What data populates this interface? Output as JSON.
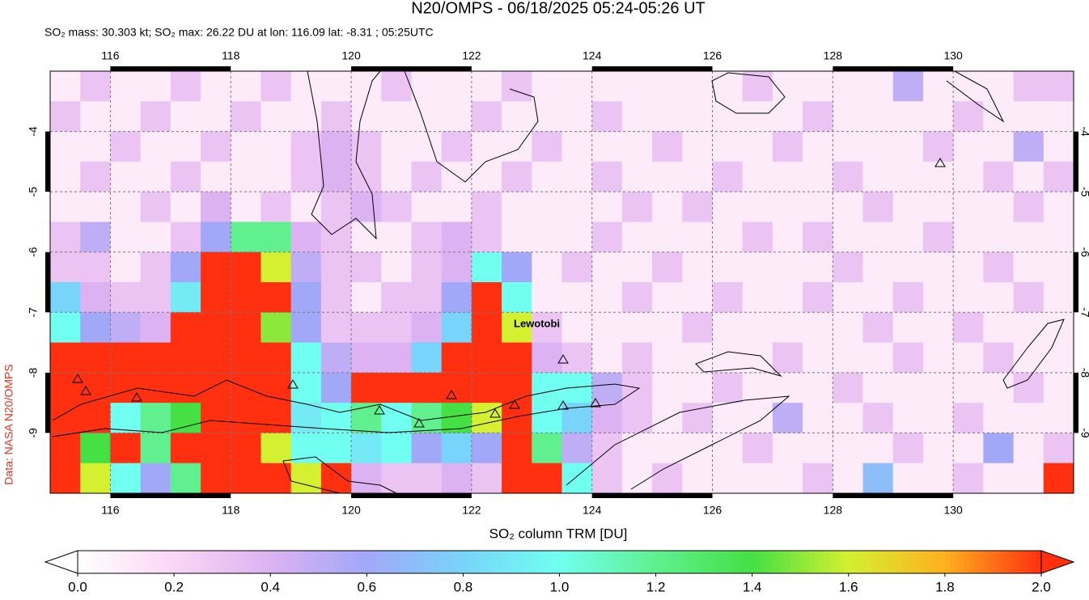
{
  "title": "N20/OMPS - 06/18/2025 05:24-05:26 UT",
  "subtitle": "SO₂ mass: 30.303 kt; SO₂ max: 26.22 DU at lon: 116.09 lat: -8.31 ; 05:25UTC",
  "credit": "Data: NASA N20/OMPS",
  "map": {
    "xlim": [
      115,
      132
    ],
    "ylim": [
      -3,
      -10
    ],
    "xticks": [
      116,
      118,
      120,
      122,
      124,
      126,
      128,
      130
    ],
    "yticks": [
      -4,
      -5,
      -6,
      -7,
      -8,
      -9
    ],
    "annotation": "Lewotobi",
    "grid": [
      [
        0.1,
        0.3,
        0.1,
        0.1,
        0.3,
        0.1,
        0.1,
        0.3,
        0.1,
        0.1,
        0.1,
        0.3,
        0.1,
        0.1,
        0.1,
        0.3,
        0.1,
        0.1,
        0.1,
        0.1,
        0.1,
        0.1,
        0.1,
        0.3,
        0.1,
        0.1,
        0.1,
        0.1,
        0.5,
        0.1,
        0.1,
        0.1,
        0.3,
        0.3
      ],
      [
        0.3,
        0.1,
        0.1,
        0.3,
        0.1,
        0.1,
        0.3,
        0.1,
        0.1,
        0.3,
        0.1,
        0.1,
        0.1,
        0.1,
        0.3,
        0.1,
        0.1,
        0.1,
        0.3,
        0.1,
        0.1,
        0.1,
        0.1,
        0.1,
        0.1,
        0.3,
        0.1,
        0.1,
        0.1,
        0.1,
        0.3,
        0.1,
        0.1,
        0.1
      ],
      [
        0.1,
        0.1,
        0.3,
        0.1,
        0.1,
        0.3,
        0.1,
        0.1,
        0.3,
        0.4,
        0.3,
        0.1,
        0.1,
        0.3,
        0.1,
        0.1,
        0.3,
        0.1,
        0.1,
        0.1,
        0.3,
        0.1,
        0.1,
        0.1,
        0.3,
        0.1,
        0.1,
        0.1,
        0.1,
        0.3,
        0.1,
        0.1,
        0.5,
        0.1
      ],
      [
        0.1,
        0.3,
        0.1,
        0.1,
        0.3,
        0.1,
        0.1,
        0.1,
        0.3,
        0.4,
        0.3,
        0.1,
        0.3,
        0.1,
        0.1,
        0.3,
        0.1,
        0.1,
        0.3,
        0.1,
        0.1,
        0.1,
        0.3,
        0.1,
        0.1,
        0.1,
        0.3,
        0.1,
        0.1,
        0.1,
        0.1,
        0.3,
        0.1,
        0.3
      ],
      [
        0.1,
        0.1,
        0.1,
        0.3,
        0.1,
        0.4,
        0.1,
        0.3,
        0.1,
        0.3,
        0.4,
        0.3,
        0.1,
        0.1,
        0.3,
        0.1,
        0.1,
        0.1,
        0.1,
        0.3,
        0.1,
        0.3,
        0.1,
        0.1,
        0.1,
        0.1,
        0.1,
        0.3,
        0.1,
        0.1,
        0.1,
        0.1,
        0.3,
        0.1
      ],
      [
        0.3,
        0.5,
        0.1,
        0.1,
        0.3,
        0.6,
        1.2,
        1.2,
        0.4,
        0.3,
        0.1,
        0.1,
        0.3,
        0.4,
        0.3,
        0.1,
        0.1,
        0.1,
        0.3,
        0.1,
        0.1,
        0.1,
        0.1,
        0.3,
        0.1,
        0.3,
        0.1,
        0.1,
        0.1,
        0.3,
        0.1,
        0.1,
        0.1,
        0.1
      ],
      [
        0.3,
        0.3,
        0.1,
        0.3,
        0.6,
        2.0,
        2.0,
        1.6,
        0.5,
        0.3,
        0.3,
        0.1,
        0.3,
        0.4,
        1.0,
        0.6,
        0.1,
        0.3,
        0.1,
        0.1,
        0.3,
        0.1,
        0.1,
        0.1,
        0.1,
        0.1,
        0.3,
        0.1,
        0.1,
        0.1,
        0.1,
        0.3,
        0.1,
        0.1
      ],
      [
        0.8,
        0.4,
        0.3,
        0.3,
        0.9,
        2.0,
        2.0,
        2.0,
        0.6,
        0.3,
        0.1,
        0.3,
        0.3,
        0.6,
        2.0,
        1.0,
        0.1,
        0.1,
        0.1,
        0.3,
        0.1,
        0.1,
        0.3,
        0.1,
        0.1,
        0.3,
        0.1,
        0.1,
        0.3,
        0.1,
        0.1,
        0.1,
        0.3,
        0.1
      ],
      [
        1.0,
        0.6,
        0.5,
        0.4,
        2.0,
        2.0,
        2.0,
        1.5,
        0.6,
        0.3,
        0.3,
        0.3,
        0.4,
        0.8,
        2.0,
        1.6,
        0.3,
        0.1,
        0.1,
        0.1,
        0.1,
        0.3,
        0.1,
        0.1,
        0.1,
        0.1,
        0.1,
        0.3,
        0.1,
        0.1,
        0.3,
        0.1,
        0.1,
        0.1
      ],
      [
        2.0,
        2.0,
        2.0,
        2.0,
        2.0,
        2.0,
        2.0,
        2.0,
        1.0,
        0.5,
        0.4,
        0.4,
        0.8,
        2.0,
        2.0,
        2.0,
        0.4,
        0.3,
        0.1,
        0.3,
        0.1,
        0.1,
        0.1,
        0.1,
        0.3,
        0.1,
        0.1,
        0.1,
        0.3,
        0.1,
        0.1,
        0.3,
        0.1,
        0.1
      ],
      [
        2.0,
        2.0,
        2.0,
        2.0,
        2.0,
        2.0,
        2.0,
        2.0,
        1.0,
        0.6,
        2.0,
        2.0,
        2.0,
        2.0,
        2.0,
        2.0,
        1.0,
        1.0,
        0.5,
        0.3,
        0.1,
        0.1,
        0.3,
        0.1,
        0.1,
        0.1,
        0.3,
        0.1,
        0.1,
        0.1,
        0.1,
        0.1,
        0.3,
        0.1
      ],
      [
        2.0,
        2.0,
        1.0,
        1.2,
        1.4,
        2.0,
        2.0,
        2.0,
        0.9,
        1.0,
        1.2,
        1.0,
        1.2,
        1.4,
        1.6,
        2.0,
        1.0,
        0.8,
        0.4,
        0.3,
        0.1,
        0.3,
        0.1,
        0.1,
        0.5,
        0.1,
        0.1,
        0.3,
        0.1,
        0.1,
        0.3,
        0.1,
        0.1,
        0.1
      ],
      [
        2.0,
        1.4,
        2.0,
        1.2,
        2.0,
        2.0,
        2.0,
        1.6,
        1.0,
        1.0,
        0.9,
        1.0,
        0.6,
        0.8,
        0.6,
        2.0,
        1.2,
        0.5,
        0.3,
        0.1,
        0.1,
        0.1,
        0.1,
        0.3,
        0.1,
        0.1,
        0.1,
        0.1,
        0.3,
        0.1,
        0.1,
        0.6,
        0.1,
        0.3
      ],
      [
        2.0,
        1.6,
        1.0,
        0.6,
        1.2,
        2.0,
        2.0,
        2.0,
        1.6,
        2.0,
        0.4,
        0.3,
        0.3,
        0.4,
        0.3,
        2.0,
        2.0,
        1.0,
        0.3,
        0.1,
        0.3,
        0.1,
        0.1,
        0.1,
        0.1,
        0.3,
        0.1,
        0.7,
        0.1,
        0.1,
        0.3,
        0.1,
        0.1,
        2.0
      ]
    ]
  },
  "colorbar": {
    "label": "SO₂ column TRM [DU]",
    "lim": [
      0,
      2
    ],
    "colormap": [
      "#ffffff",
      "#fbd6f5",
      "#dcb2f2",
      "#a2a8f8",
      "#78d4fa",
      "#70fff0",
      "#60f090",
      "#44e044",
      "#d4f030",
      "#ffb020",
      "#ff3010"
    ],
    "ticks": [
      {
        "value": 0,
        "label": "0.0"
      },
      {
        "value": 0.2,
        "label": "0.2"
      },
      {
        "value": 0.4,
        "label": "0.4"
      },
      {
        "value": 0.6,
        "label": "0.6"
      },
      {
        "value": 0.8,
        "label": "0.8"
      },
      {
        "value": 1,
        "label": "1.0"
      },
      {
        "value": 1.2,
        "label": "1.2"
      },
      {
        "value": 1.4,
        "label": "1.4"
      },
      {
        "value": 1.6,
        "label": "1.6"
      },
      {
        "value": 1.8,
        "label": "1.8"
      },
      {
        "value": 2,
        "label": "2.0"
      }
    ]
  }
}
